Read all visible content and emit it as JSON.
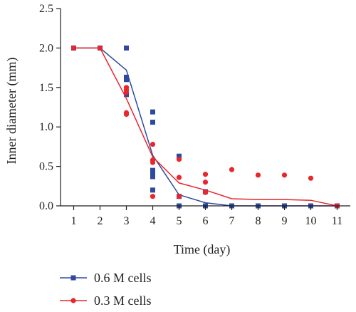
{
  "chart_data": {
    "type": "scatter",
    "xlabel": "Time (day)",
    "ylabel": "Inner diameter (mm)",
    "xlim": [
      0.5,
      11.5
    ],
    "ylim": [
      0,
      2.5
    ],
    "x_ticks": [
      "1",
      "2",
      "3",
      "4",
      "5",
      "6",
      "7",
      "8",
      "9",
      "10",
      "11"
    ],
    "y_ticks": [
      "0.0",
      "0.5",
      "1.0",
      "1.5",
      "2.0",
      "2.5"
    ],
    "grid": false,
    "legend_position": "bottom-left",
    "series": [
      {
        "name": "0.6 M cells",
        "color": "#2e4a9e",
        "marker": "square",
        "points": [
          [
            1,
            2.0
          ],
          [
            2,
            2.0
          ],
          [
            3,
            2.0
          ],
          [
            3,
            1.63
          ],
          [
            3,
            1.6
          ],
          [
            3,
            1.41
          ],
          [
            4,
            1.19
          ],
          [
            4,
            1.06
          ],
          [
            4,
            0.45
          ],
          [
            4,
            0.41
          ],
          [
            4,
            0.37
          ],
          [
            4,
            0.2
          ],
          [
            5,
            0.63
          ],
          [
            5,
            0.61
          ],
          [
            5,
            0.12
          ],
          [
            5,
            0.0
          ],
          [
            6,
            0.18
          ],
          [
            6,
            0.0
          ],
          [
            7,
            0.0
          ],
          [
            8,
            0.0
          ],
          [
            9,
            0.0
          ],
          [
            10,
            0.0
          ],
          [
            11,
            0.0
          ]
        ],
        "line": [
          [
            1,
            2.0
          ],
          [
            2,
            2.0
          ],
          [
            3,
            1.72
          ],
          [
            4,
            0.64
          ],
          [
            5,
            0.14
          ],
          [
            6,
            0.04
          ],
          [
            7,
            0.0
          ],
          [
            8,
            0.0
          ],
          [
            9,
            0.0
          ],
          [
            10,
            0.0
          ],
          [
            11,
            0.0
          ]
        ]
      },
      {
        "name": "0.3 M cells",
        "color": "#e8262c",
        "marker": "circle",
        "points": [
          [
            1,
            2.0
          ],
          [
            2,
            2.0
          ],
          [
            3,
            1.5
          ],
          [
            3,
            1.47
          ],
          [
            3,
            1.44
          ],
          [
            3,
            1.18
          ],
          [
            3,
            1.16
          ],
          [
            4,
            0.78
          ],
          [
            4,
            0.58
          ],
          [
            4,
            0.55
          ],
          [
            4,
            0.12
          ],
          [
            5,
            0.59
          ],
          [
            5,
            0.36
          ],
          [
            5,
            0.12
          ],
          [
            6,
            0.4
          ],
          [
            6,
            0.3
          ],
          [
            6,
            0.17
          ],
          [
            7,
            0.46
          ],
          [
            8,
            0.39
          ],
          [
            9,
            0.39
          ],
          [
            10,
            0.35
          ],
          [
            11,
            0.0
          ]
        ],
        "line": [
          [
            1,
            2.0
          ],
          [
            2,
            2.0
          ],
          [
            3,
            1.36
          ],
          [
            4,
            0.62
          ],
          [
            5,
            0.29
          ],
          [
            6,
            0.2
          ],
          [
            7,
            0.09
          ],
          [
            8,
            0.08
          ],
          [
            9,
            0.08
          ],
          [
            10,
            0.07
          ],
          [
            11,
            0.0
          ]
        ]
      }
    ]
  }
}
